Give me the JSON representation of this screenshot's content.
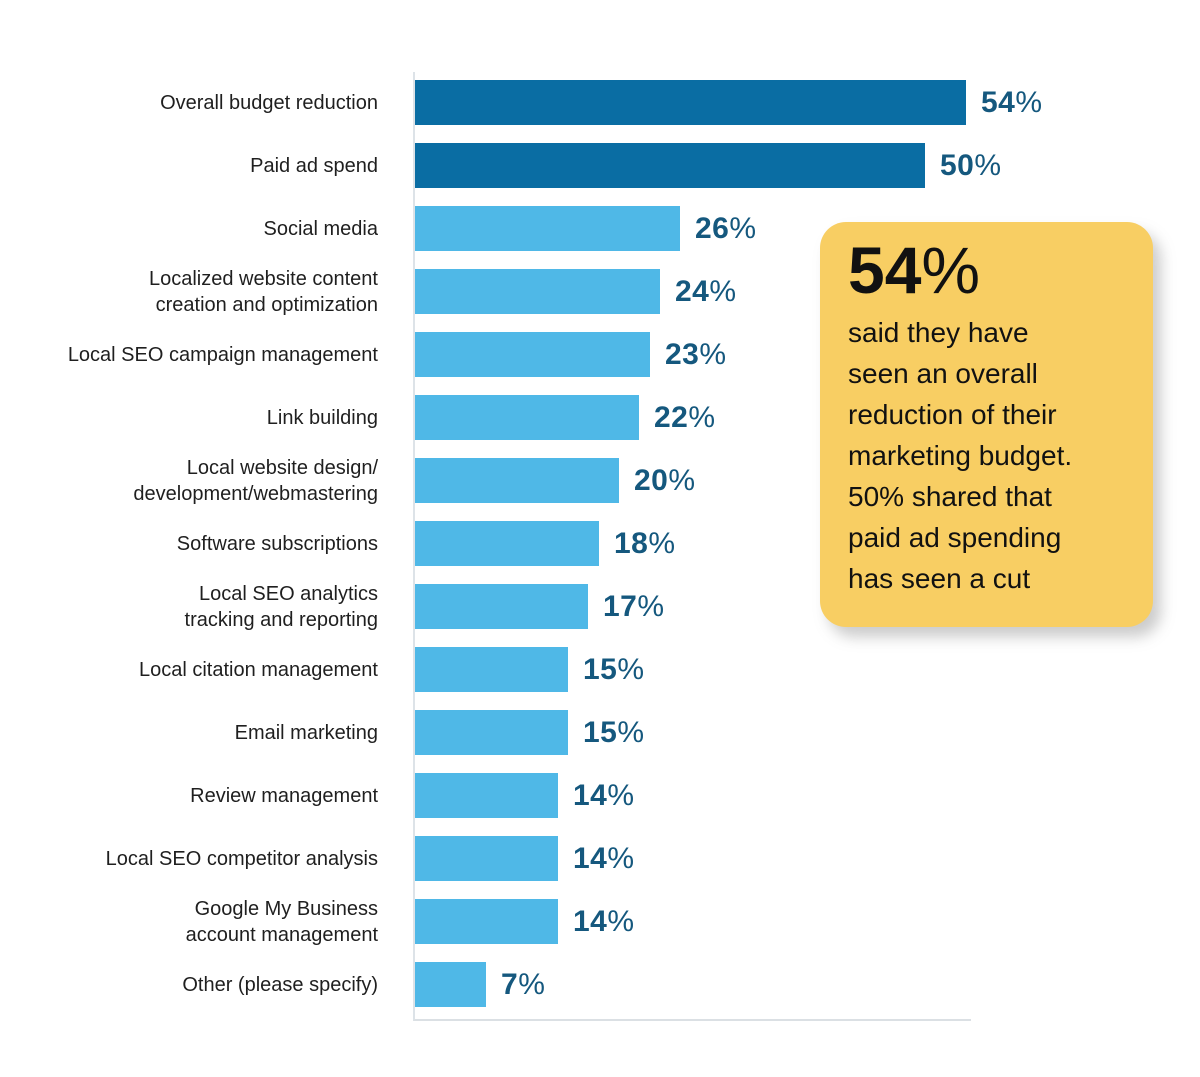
{
  "chart_data": {
    "type": "bar",
    "orientation": "horizontal",
    "title": "",
    "xlabel": "",
    "ylabel": "",
    "unit": "%",
    "xlim": [
      0,
      55
    ],
    "grid": false,
    "legend": "none",
    "categories": [
      "Overall budget reduction",
      "Paid ad spend",
      "Social media",
      "Localized website content\ncreation and optimization",
      "Local SEO campaign management",
      "Link building",
      "Local website design/\ndevelopment/webmastering",
      "Software subscriptions",
      "Local SEO analytics\ntracking and reporting",
      "Local citation management",
      "Email marketing",
      "Review management",
      "Local SEO competitor analysis",
      "Google My Business\naccount management",
      "Other (please specify)"
    ],
    "values": [
      54,
      50,
      26,
      24,
      23,
      22,
      20,
      18,
      17,
      15,
      15,
      14,
      14,
      14,
      7
    ],
    "bar_colors": [
      "dark",
      "dark",
      "light",
      "light",
      "light",
      "light",
      "light",
      "light",
      "light",
      "light",
      "light",
      "light",
      "light",
      "light",
      "light"
    ],
    "palette": {
      "dark": "#0A6DA3",
      "light": "#4FB8E7",
      "value_label": "#15587E",
      "category_label": "#1F1F1F",
      "axis_line": "#DDE3E8"
    }
  },
  "callout": {
    "headline_number": "54",
    "headline_suffix": "%",
    "body": "said they have\nseen an overall\nreduction of their\nmarketing budget.\n50% shared that\npaid ad spending\nhas seen a cut",
    "background": "#F8CE63"
  }
}
